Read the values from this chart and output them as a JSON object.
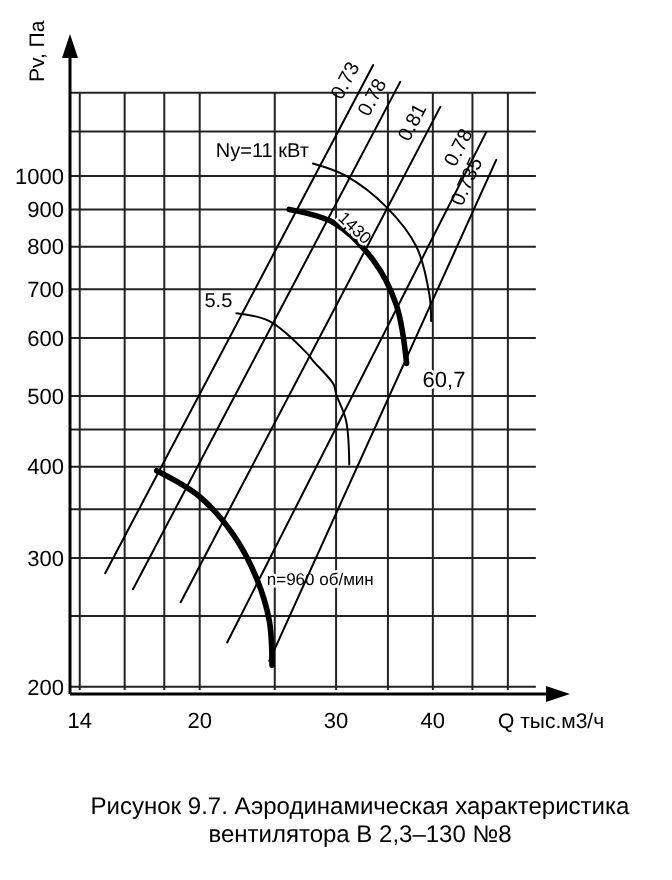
{
  "chart_data": {
    "type": "line",
    "title": "Рисунок 9.7. Аэродинамическая характеристика вентилятора  В 2,3–130 №8",
    "xlabel": "Q тыс.м3/ч",
    "ylabel": "Pv, Па",
    "log": "xy",
    "grid": true,
    "marker": "none",
    "line_style": "solid",
    "xlim": [
      13.6,
      56
    ],
    "xticks": [
      14,
      {
        "value": 16,
        "label": null
      },
      {
        "value": 18,
        "label": null
      },
      20,
      {
        "value": 25,
        "label": null
      },
      30,
      {
        "value": 35,
        "label": null
      },
      40,
      {
        "value": 45,
        "label": null
      },
      {
        "value": 50,
        "label": null
      }
    ],
    "ylim": [
      198,
      1450
    ],
    "yticks": [
      200,
      {
        "value": 250,
        "label": null
      },
      300,
      {
        "value": 350,
        "label": null
      },
      400,
      {
        "value": 450,
        "label": null
      },
      500,
      600,
      700,
      800,
      900,
      1000,
      {
        "value": 1150,
        "label": null
      },
      {
        "value": 1300,
        "label": null
      }
    ],
    "series": [
      {
        "name": "n=960 об/мин",
        "color": "#000000",
        "x": [
          17.6,
          20,
          22.1,
          23.7,
          24.6,
          24.8
        ],
        "values": [
          395,
          364,
          323,
          281,
          246,
          214
        ]
      },
      {
        "name": "1430",
        "color": "#000000",
        "x": [
          26.1,
          29.8,
          33.5,
          35.9,
          37.0
        ],
        "values": [
          900,
          863,
          767,
          665,
          554
        ]
      },
      {
        "name": "Ny=11 кВт",
        "color": "#000000",
        "x": [
          28.0,
          30.9,
          34.9,
          38.1,
          39.6,
          39.8
        ],
        "values": [
          1040,
          1000,
          905,
          800,
          687,
          633
        ]
      },
      {
        "name": "5.5",
        "color": "#000000",
        "x": [
          22.3,
          24.6,
          27.6,
          28.0,
          29.8,
          30.0,
          30.9,
          31.2
        ],
        "values": [
          649,
          633,
          570,
          559,
          518,
          503,
          463,
          403
        ]
      },
      {
        "name": "0.73",
        "color": "#000000",
        "x": [
          15.1,
          33.5
        ],
        "values": [
          286,
          1418
        ]
      },
      {
        "name": "0.78",
        "color": "#000000",
        "x": [
          16.4,
          36.3
        ],
        "values": [
          272,
          1345
        ]
      },
      {
        "name": "0.81",
        "color": "#000000",
        "x": [
          18.9,
          40.9
        ],
        "values": [
          261,
          1243
        ]
      },
      {
        "name": "0.78",
        "color": "#000000",
        "x": [
          21.7,
          46.9
        ],
        "values": [
          230,
          1149
        ]
      },
      {
        "name": "0.735",
        "color": "#000000",
        "x": [
          24.6,
          48.3
        ],
        "values": [
          217,
          1052
        ]
      }
    ],
    "annotations": [
      {
        "text": "60,7",
        "x": 37.0,
        "y": 554
      }
    ]
  }
}
